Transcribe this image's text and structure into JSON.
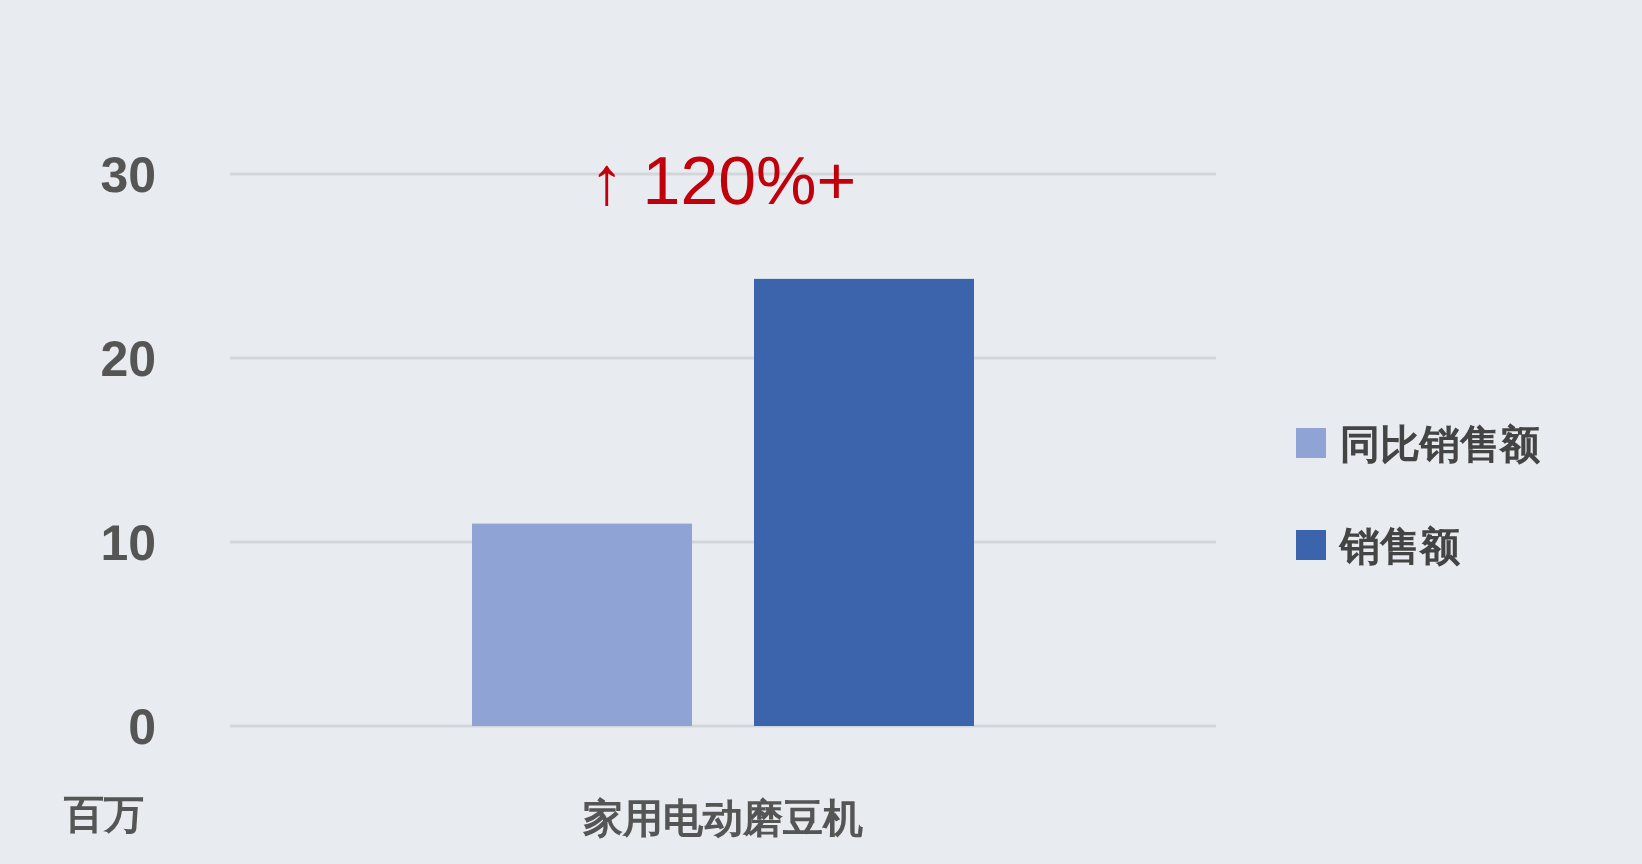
{
  "chart_data": {
    "type": "bar",
    "categories": [
      "家用电动磨豆机"
    ],
    "ylabel": "百万",
    "ylim": [
      0,
      30
    ],
    "yticks": [
      0,
      10,
      20,
      30
    ],
    "grid": "y",
    "legend": "right",
    "annotations": [
      "↑ 120%+"
    ],
    "series": [
      {
        "name": "同比销售额",
        "color": "#8fa4d5",
        "values": [
          11.0
        ]
      },
      {
        "name": "销售额",
        "color": "#3c64ad",
        "values": [
          24.3
        ]
      }
    ]
  }
}
